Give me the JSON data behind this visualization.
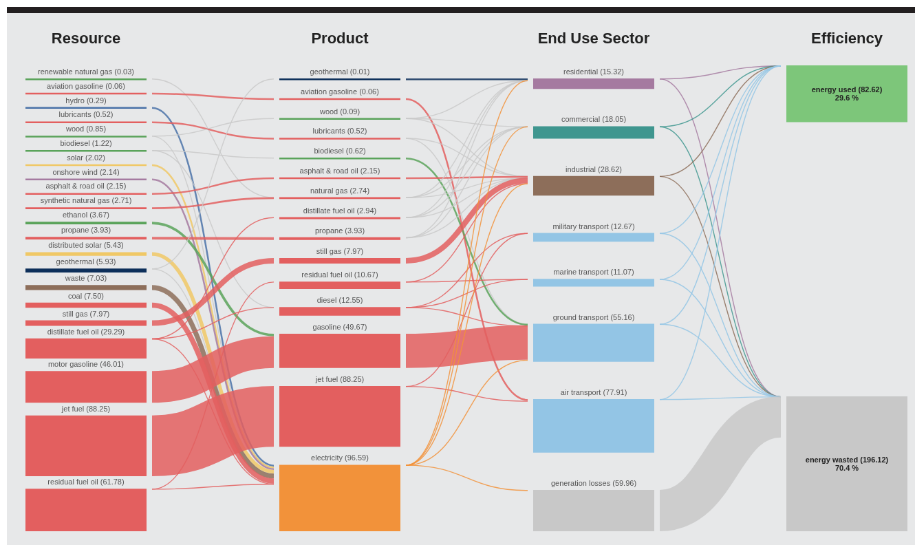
{
  "chart_data": [
    {
      "type": "other",
      "title": "Resource",
      "categories": [
        "renewable natural gas",
        "aviation gasoline",
        "hydro",
        "lubricants",
        "wood",
        "biodiesel",
        "solar",
        "onshore wind",
        "asphalt & road oil",
        "synthetic natural gas",
        "ethanol",
        "propane",
        "distributed solar",
        "geothermal",
        "waste",
        "coal",
        "still gas",
        "distillate fuel oil",
        "motor gasoline",
        "jet fuel",
        "residual fuel oil"
      ],
      "values": [
        0.03,
        0.06,
        0.29,
        0.52,
        0.85,
        1.22,
        2.02,
        2.14,
        2.15,
        2.71,
        3.67,
        3.93,
        5.43,
        5.93,
        7.03,
        7.5,
        7.97,
        29.29,
        46.01,
        88.25,
        61.78
      ],
      "value_labels": [
        "(0.03)",
        "(0.06)",
        "(0.29)",
        "(0.52)",
        "(0.85)",
        "(1.22)",
        "(2.02)",
        "(2.14)",
        "(2.15)",
        "(2.71)",
        "(3.67)",
        "(3.93)",
        "(5.43)",
        "(5.93)",
        "(7.03)",
        "(7.50)",
        "(7.97)",
        "(29.29)",
        "(46.01)",
        "(88.25)",
        "(61.78)"
      ],
      "colors": [
        "#5aa35a",
        "#e35f5f",
        "#4a72a8",
        "#e35f5f",
        "#5aa35a",
        "#5aa35a",
        "#f0c866",
        "#a57aa0",
        "#e35f5f",
        "#e35f5f",
        "#5aa35a",
        "#e35f5f",
        "#f0c866",
        "#0d2f5a",
        "#8d6e5a",
        "#e35f5f",
        "#e35f5f",
        "#e35f5f",
        "#e35f5f",
        "#e35f5f",
        "#e35f5f"
      ]
    },
    {
      "type": "other",
      "title": "Product",
      "categories": [
        "geothermal",
        "aviation gasoline",
        "wood",
        "lubricants",
        "biodiesel",
        "asphalt & road oil",
        "natural gas",
        "distillate fuel oil",
        "propane",
        "still gas",
        "residual fuel oil",
        "diesel",
        "gasoline",
        "jet fuel",
        "electricity"
      ],
      "values": [
        0.01,
        0.06,
        0.09,
        0.52,
        0.62,
        2.15,
        2.74,
        2.94,
        3.93,
        7.97,
        10.67,
        12.55,
        49.67,
        88.25,
        96.59
      ],
      "value_labels": [
        "(0.01)",
        "(0.06)",
        "(0.09)",
        "(0.52)",
        "(0.62)",
        "(2.15)",
        "(2.74)",
        "(2.94)",
        "(3.93)",
        "(7.97)",
        "(10.67)",
        "(12.55)",
        "(49.67)",
        "(88.25)",
        "(96.59)"
      ],
      "colors": [
        "#0d2f5a",
        "#e35f5f",
        "#5aa35a",
        "#e35f5f",
        "#5aa35a",
        "#e35f5f",
        "#e35f5f",
        "#e35f5f",
        "#e35f5f",
        "#e35f5f",
        "#e35f5f",
        "#e35f5f",
        "#e35f5f",
        "#e35f5f",
        "#f2923a"
      ]
    },
    {
      "type": "other",
      "title": "End Use Sector",
      "categories": [
        "residential",
        "commercial",
        "industrial",
        "military transport",
        "marine transport",
        "ground transport",
        "air transport",
        "generation losses"
      ],
      "values": [
        15.32,
        18.05,
        28.62,
        12.67,
        11.07,
        55.16,
        77.91,
        59.96
      ],
      "value_labels": [
        "(15.32)",
        "(18.05)",
        "(28.62)",
        "(12.67)",
        "(11.07)",
        "(55.16)",
        "(77.91)",
        "(59.96)"
      ],
      "colors": [
        "#a57aa0",
        "#3f968f",
        "#8d6e5a",
        "#93c5e5",
        "#93c5e5",
        "#93c5e5",
        "#93c5e5",
        "#c8c8c8"
      ]
    },
    {
      "type": "other",
      "title": "Efficiency",
      "categories": [
        "energy used",
        "energy wasted"
      ],
      "values": [
        82.62,
        196.12
      ],
      "value_labels": [
        "(82.62)",
        "(196.12)"
      ],
      "colors": [
        "#7dc67a",
        "#c8c8c8"
      ],
      "annotations": [
        "29.6 %",
        "70.4 %"
      ]
    }
  ]
}
